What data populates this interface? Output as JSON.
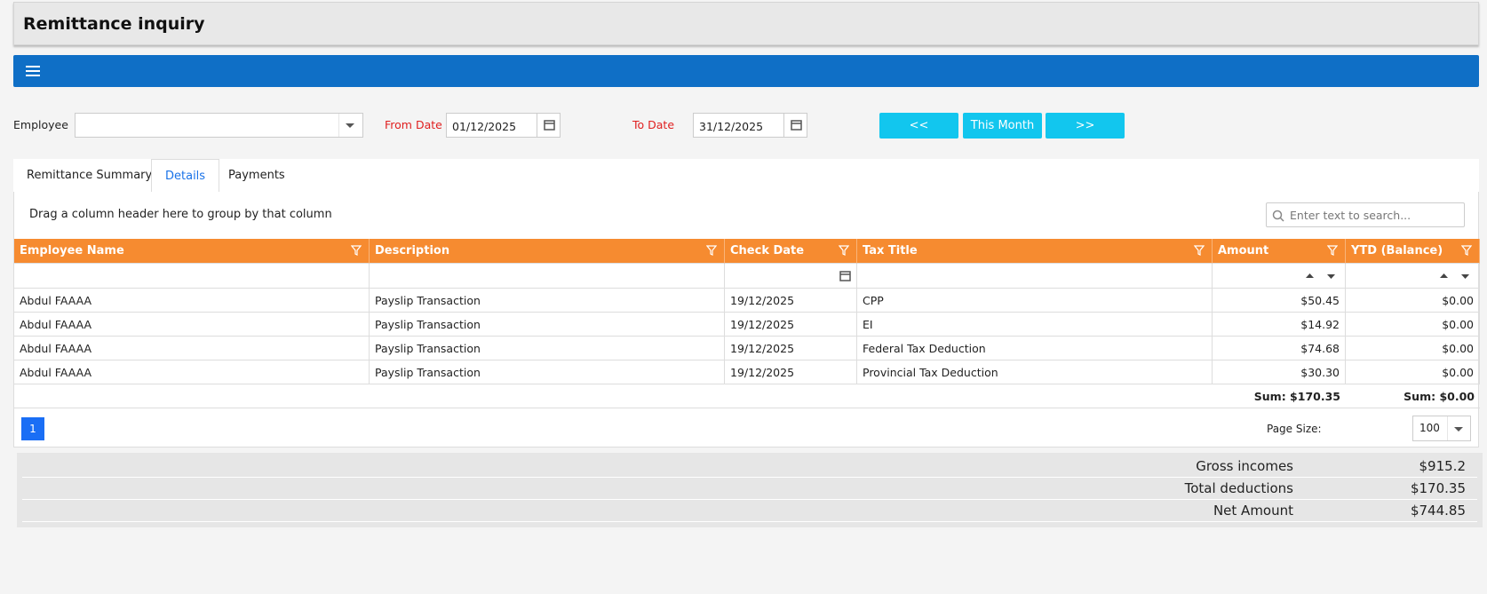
{
  "header": {
    "title": "Remittance inquiry"
  },
  "filters": {
    "employee_label": "Employee",
    "from_date_label": "From Date",
    "from_date": "01/12/2025",
    "to_date_label": "To Date",
    "to_date": "31/12/2025"
  },
  "buttons": [
    "<<",
    "This Month",
    ">>"
  ],
  "tabs": [
    "Remittance Summary",
    "Details",
    "Payments"
  ],
  "active_tab": 1,
  "grid": {
    "group_hint": "Drag a column header here to group by that column",
    "search_placeholder": "Enter text to search...",
    "columns": [
      "Employee Name",
      "Description",
      "Check Date",
      "Tax Title",
      "Amount",
      "YTD (Balance)"
    ],
    "rows": [
      [
        "Abdul FAAAA",
        "Payslip Transaction",
        "19/12/2025",
        "CPP",
        "$50.45",
        "$0.00"
      ],
      [
        "Abdul FAAAA",
        "Payslip Transaction",
        "19/12/2025",
        "EI",
        "$14.92",
        "$0.00"
      ],
      [
        "Abdul FAAAA",
        "Payslip Transaction",
        "19/12/2025",
        "Federal Tax Deduction",
        "$74.68",
        "$0.00"
      ],
      [
        "Abdul FAAAA",
        "Payslip Transaction",
        "19/12/2025",
        "Provincial Tax Deduction",
        "$30.30",
        "$0.00"
      ]
    ],
    "sums": [
      "Sum: $170.35",
      "Sum: $0.00"
    ]
  },
  "pager": {
    "page": "1",
    "page_size_label": "Page Size:",
    "page_size": "100"
  },
  "totals": [
    {
      "label": "Gross incomes",
      "value": "$915.2"
    },
    {
      "label": "Total deductions",
      "value": "$170.35"
    },
    {
      "label": "Net Amount",
      "value": "$744.85"
    }
  ]
}
